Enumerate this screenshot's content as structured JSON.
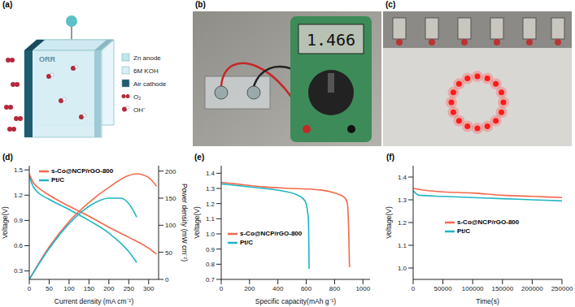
{
  "panel_labels": [
    "(a)",
    "(b)",
    "(c)",
    "(d)",
    "(e)",
    "(f)"
  ],
  "schematic": {
    "key_items": [
      "Zn anode",
      "6M KOH",
      "Air cathode",
      "O₂",
      "OH⁻"
    ],
    "reaction": "ORR"
  },
  "photo_b": {
    "display": "1.466"
  },
  "chart_data": [
    {
      "type": "line",
      "x_label": "Current density (mA cm⁻²)",
      "y_label": "Voltage(V)",
      "y2_label": "Power density (mW cm⁻²)",
      "xlim": [
        0,
        325
      ],
      "xticks": [
        0,
        50,
        100,
        150,
        200,
        250,
        300
      ],
      "ylim": [
        0.2,
        1.55
      ],
      "yticks": [
        0.3,
        0.6,
        0.9,
        1.2,
        1.5
      ],
      "y2lim": [
        0,
        210
      ],
      "y2ticks": [
        0,
        50,
        100,
        150,
        200
      ],
      "legend": "upper left",
      "series": [
        {
          "name": "s-Co@NCP/rGO-800",
          "color": "#f4694b",
          "x": [
            0,
            10,
            25,
            50,
            100,
            150,
            200,
            250,
            300,
            320
          ],
          "values": [
            1.45,
            1.35,
            1.28,
            1.2,
            1.07,
            0.95,
            0.82,
            0.7,
            0.57,
            0.5
          ]
        },
        {
          "name": "Pt/C",
          "color": "#1fb5c4",
          "x": [
            0,
            10,
            25,
            50,
            100,
            150,
            200,
            250,
            270
          ],
          "values": [
            1.42,
            1.3,
            1.22,
            1.15,
            1.03,
            0.9,
            0.75,
            0.53,
            0.4
          ]
        },
        {
          "name": "s-Co@NCP/rGO-800",
          "color": "#f4694b",
          "axis": "y2",
          "x": [
            0,
            50,
            100,
            150,
            200,
            250,
            270,
            300,
            320
          ],
          "values": [
            0,
            60,
            107,
            142,
            170,
            192,
            195,
            188,
            172
          ]
        },
        {
          "name": "Pt/C",
          "color": "#1fb5c4",
          "axis": "y2",
          "x": [
            0,
            50,
            100,
            150,
            200,
            230,
            250,
            270
          ],
          "values": [
            0,
            57,
            103,
            135,
            150,
            150,
            140,
            115
          ]
        }
      ]
    },
    {
      "type": "line",
      "x_label": "Specific capacity(mAh g⁻¹)",
      "y_label": "Voltage(V)",
      "xlim": [
        0,
        1050
      ],
      "xticks": [
        0,
        200,
        400,
        600,
        800,
        1000
      ],
      "ylim": [
        0.7,
        1.45
      ],
      "yticks": [
        0.7,
        0.8,
        0.9,
        {
          "value": 1,
          "label": "1.0"
        },
        1.1,
        1.2,
        1.3,
        1.4
      ],
      "legend": "center left",
      "series": [
        {
          "name": "s-Co@NCP/rGO-800",
          "color": "#f4694b",
          "x": [
            0,
            100,
            300,
            500,
            700,
            800,
            870,
            890,
            900,
            905
          ],
          "values": [
            1.34,
            1.33,
            1.31,
            1.3,
            1.29,
            1.27,
            1.24,
            1.2,
            1.0,
            0.78
          ]
        },
        {
          "name": "Pt/C",
          "color": "#1fb5c4",
          "x": [
            0,
            100,
            300,
            450,
            530,
            590,
            615,
            620
          ],
          "values": [
            1.33,
            1.32,
            1.3,
            1.28,
            1.26,
            1.22,
            1.1,
            0.77
          ]
        }
      ]
    },
    {
      "type": "line",
      "x_label": "Time(s)",
      "y_label": "Voltage(V)",
      "xlim": [
        0,
        250000
      ],
      "xticks": [
        0,
        50000,
        100000,
        150000,
        200000,
        250000
      ],
      "ylim": [
        0.95,
        1.45
      ],
      "yticks": [
        {
          "value": 1,
          "label": "1.0"
        },
        1.1,
        1.2,
        1.3,
        1.4
      ],
      "legend": "center",
      "series": [
        {
          "name": "s-Co@NCP/rGO-800",
          "color": "#f4694b",
          "x": [
            0,
            25000,
            50000,
            100000,
            150000,
            200000,
            250000
          ],
          "values": [
            1.35,
            1.34,
            1.335,
            1.33,
            1.32,
            1.315,
            1.31
          ]
        },
        {
          "name": "Pt/C",
          "color": "#1fb5c4",
          "x": [
            0,
            10000,
            50000,
            100000,
            150000,
            200000,
            250000
          ],
          "values": [
            1.34,
            1.32,
            1.315,
            1.31,
            1.305,
            1.3,
            1.295
          ]
        }
      ]
    }
  ]
}
